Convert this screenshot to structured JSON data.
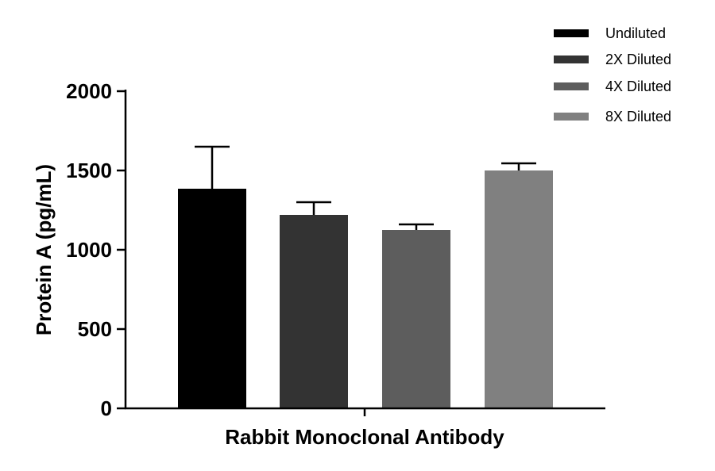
{
  "chart_data": {
    "type": "bar",
    "title": "",
    "xlabel": "Rabbit Monoclonal Antibody",
    "ylabel": "Protein A (pg/mL)",
    "ylim": [
      0,
      2000
    ],
    "yticks": [
      "0",
      "500",
      "1000",
      "1500",
      "2000"
    ],
    "ytick_values": [
      0,
      500,
      1000,
      1500,
      2000
    ],
    "legend_position": "top-right",
    "grid": false,
    "series": [
      {
        "name": "Undiluted",
        "value": 1385,
        "error": 265,
        "color": "#000000"
      },
      {
        "name": "2X Diluted",
        "value": 1220,
        "error": 80,
        "color": "#333333"
      },
      {
        "name": "4X Diluted",
        "value": 1125,
        "error": 35,
        "color": "#5d5d5d"
      },
      {
        "name": "8X Diluted",
        "value": 1500,
        "error": 45,
        "color": "#808080"
      }
    ]
  }
}
